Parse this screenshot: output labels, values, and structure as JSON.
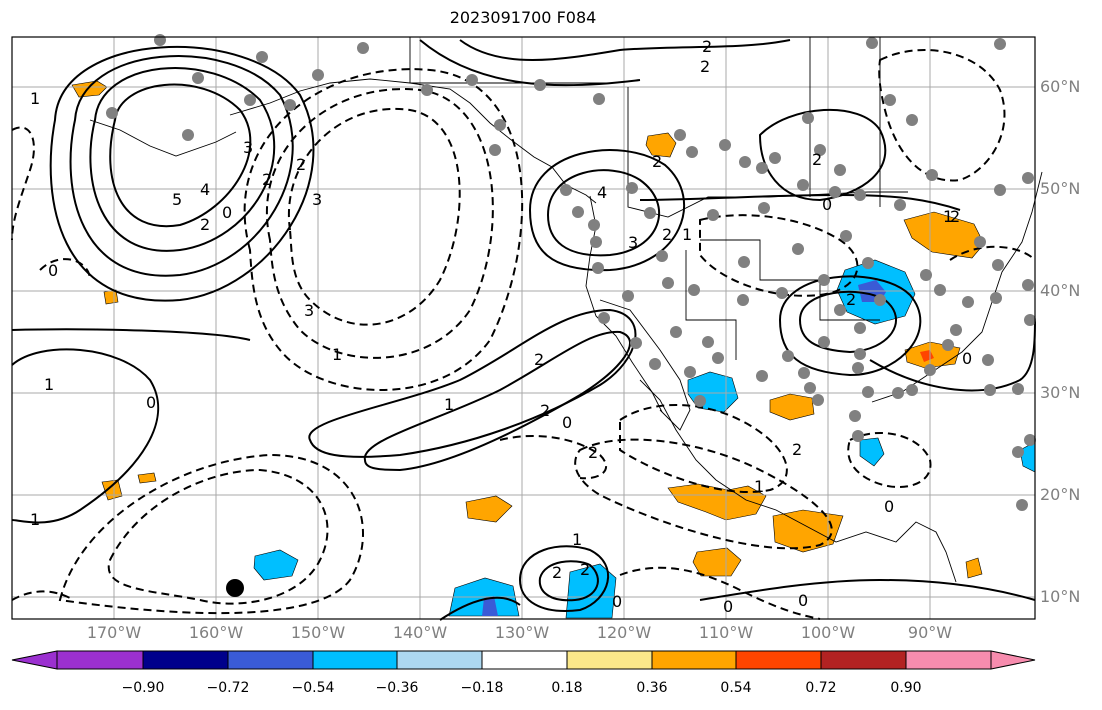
{
  "title": "2023091700 F084",
  "lon_ticks": [
    "170°W",
    "160°W",
    "150°W",
    "140°W",
    "130°W",
    "120°W",
    "110°W",
    "100°W",
    "90°W"
  ],
  "lat_ticks": [
    "60°N",
    "50°N",
    "40°N",
    "30°N",
    "20°N",
    "10°N"
  ],
  "colorbar": {
    "labels": [
      "−0.90",
      "−0.72",
      "−0.54",
      "−0.36",
      "−0.18",
      "0.18",
      "0.36",
      "0.54",
      "0.72",
      "0.90"
    ],
    "colors": [
      "#9b30d0",
      "#00008b",
      "#3a5bd6",
      "#00bfff",
      "#add8f0",
      "#ffffff",
      "#fbe88a",
      "#ffa500",
      "#ff4500",
      "#b22222",
      "#f78cae"
    ]
  },
  "contour_labels": [
    "2",
    "2",
    "1",
    "3",
    "5",
    "4",
    "3",
    "2",
    "0",
    "2",
    "3",
    "2",
    "1",
    "2",
    "0",
    "4",
    "3",
    "2",
    "1",
    "2",
    "0",
    "2",
    "1",
    "0",
    "2",
    "2",
    "1",
    "0",
    "1",
    "2",
    "2",
    "0",
    "2",
    "0",
    "0",
    "1",
    "2",
    "2",
    "0",
    "0",
    "1",
    "1"
  ],
  "colors": {
    "grid": "#a9a9a9",
    "station": "#808080",
    "contour": "#000000",
    "tick_label": "#808080"
  }
}
